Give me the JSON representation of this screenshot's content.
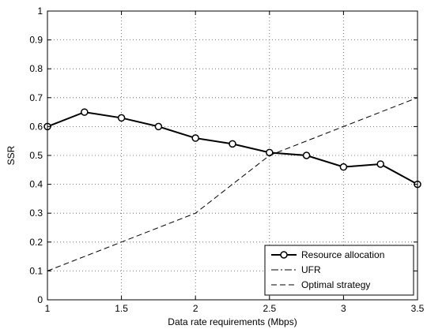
{
  "chart_data": {
    "type": "line",
    "xlabel": "Data rate requirements (Mbps)",
    "ylabel": "SSR",
    "xlim": [
      1,
      3.5
    ],
    "ylim": [
      0,
      1
    ],
    "xticks": [
      "1",
      "1.5",
      "2",
      "2.5",
      "3",
      "3.5"
    ],
    "yticks": [
      "0",
      "0.1",
      "0.2",
      "0.3",
      "0.4",
      "0.5",
      "0.6",
      "0.7",
      "0.8",
      "0.9",
      "1"
    ],
    "grid": true,
    "legend_position": "bottom-right",
    "series": [
      {
        "name": "Resource allocation",
        "style": "solid-circle",
        "color": "#000000",
        "x": [
          1,
          1.25,
          1.5,
          1.75,
          2,
          2.25,
          2.5,
          2.75,
          3,
          3.25,
          3.5
        ],
        "y": [
          0.6,
          0.65,
          0.63,
          0.6,
          0.56,
          0.54,
          0.51,
          0.5,
          0.46,
          0.47,
          0.4
        ]
      },
      {
        "name": "UFR",
        "style": "dash-dot",
        "color": "#000000",
        "x": [
          1,
          3.5
        ],
        "y": [
          1.0,
          1.0
        ]
      },
      {
        "name": "Optimal strategy",
        "style": "dashed",
        "color": "#000000",
        "x": [
          1,
          1.5,
          2,
          2.5,
          3,
          3.5
        ],
        "y": [
          0.1,
          0.2,
          0.3,
          0.5,
          0.6,
          0.7
        ]
      }
    ]
  }
}
